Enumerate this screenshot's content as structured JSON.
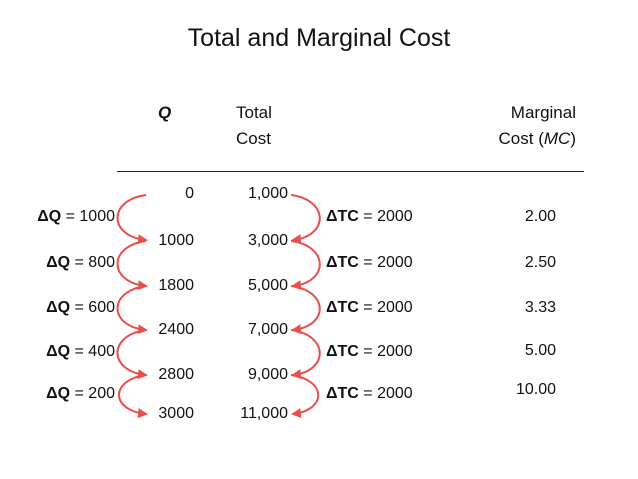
{
  "title": "Total and Marginal Cost",
  "headers": {
    "q": "Q",
    "total_cost_1": "Total",
    "total_cost_2": "Cost",
    "marginal_1": "Marginal",
    "marginal_2_prefix": "Cost (",
    "marginal_2_italic": "MC",
    "marginal_2_suffix": ")"
  },
  "rows": [
    {
      "q": "0",
      "tc": "1,000"
    },
    {
      "q": "1000",
      "tc": "3,000"
    },
    {
      "q": "1800",
      "tc": "5,000"
    },
    {
      "q": "2400",
      "tc": "7,000"
    },
    {
      "q": "2800",
      "tc": "9,000"
    },
    {
      "q": "3000",
      "tc": "11,000"
    }
  ],
  "deltas": [
    {
      "dq_symbol": "ΔQ",
      "dq_value": " = 1000",
      "dtc_symbol": "ΔTC",
      "dtc_value": " = 2000",
      "mc": "2.00"
    },
    {
      "dq_symbol": "ΔQ",
      "dq_value": " = 800",
      "dtc_symbol": "ΔTC",
      "dtc_value": " = 2000",
      "mc": "2.50"
    },
    {
      "dq_symbol": "ΔQ",
      "dq_value": " = 600",
      "dtc_symbol": "ΔTC",
      "dtc_value": " = 2000",
      "mc": "3.33"
    },
    {
      "dq_symbol": "ΔQ",
      "dq_value": " = 400",
      "dtc_symbol": "ΔTC",
      "dtc_value": " = 2000",
      "mc": "5.00"
    },
    {
      "dq_symbol": "ΔQ",
      "dq_value": " = 200",
      "dtc_symbol": "ΔTC",
      "dtc_value": " = 2000",
      "mc": "10.00"
    }
  ],
  "colors": {
    "arrow": "#e8504d",
    "text": "#111111"
  }
}
